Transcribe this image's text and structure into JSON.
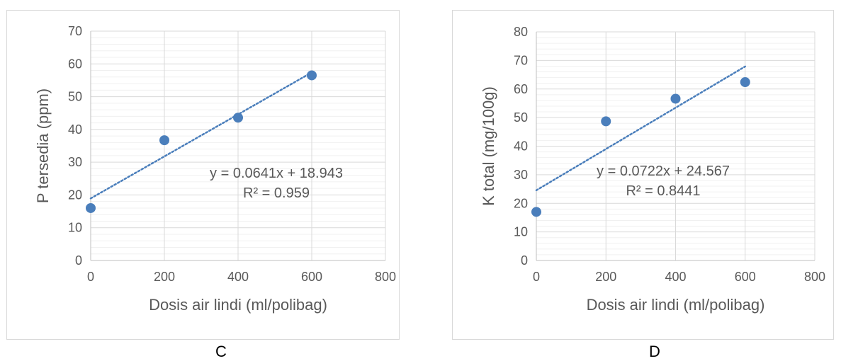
{
  "chart_data": [
    {
      "type": "scatter",
      "panel_label": "C",
      "xlabel": "Dosis  air lindi  (ml/polibag)",
      "ylabel": "P tersedia (ppm)",
      "xlim": [
        0,
        800
      ],
      "ylim": [
        0,
        70
      ],
      "x_ticks": [
        0,
        200,
        400,
        600,
        800
      ],
      "y_ticks": [
        0,
        10,
        20,
        30,
        40,
        50,
        60,
        70
      ],
      "minor_grid_step": 2,
      "points": [
        {
          "x": 0,
          "y": 16.0
        },
        {
          "x": 200,
          "y": 36.7
        },
        {
          "x": 400,
          "y": 43.6
        },
        {
          "x": 600,
          "y": 56.5
        }
      ],
      "trendline": {
        "type": "linear",
        "slope": 0.0641,
        "intercept": 18.943,
        "x_range": [
          0,
          600
        ]
      },
      "equation_text": "y = 0.0641x + 18.943",
      "r2_text": "R² = 0.959",
      "marker_color": "#4a7ebb",
      "trend_color": "#4a7ebb",
      "grid": true
    },
    {
      "type": "scatter",
      "panel_label": "D",
      "xlabel": "Dosis  air lindi (ml/polibag)",
      "ylabel": "K total (mg/100g)",
      "xlim": [
        0,
        800
      ],
      "ylim": [
        0,
        80
      ],
      "x_ticks": [
        0,
        200,
        400,
        600,
        800
      ],
      "y_ticks": [
        0,
        10,
        20,
        30,
        40,
        50,
        60,
        70,
        80
      ],
      "minor_grid_step": 2,
      "points": [
        {
          "x": 0,
          "y": 17.0
        },
        {
          "x": 200,
          "y": 48.7
        },
        {
          "x": 400,
          "y": 56.6
        },
        {
          "x": 600,
          "y": 62.4
        }
      ],
      "trendline": {
        "type": "linear",
        "slope": 0.0722,
        "intercept": 24.567,
        "x_range": [
          0,
          600
        ]
      },
      "equation_text": "y = 0.0722x + 24.567",
      "r2_text": "R² = 0.8441",
      "marker_color": "#4a7ebb",
      "trend_color": "#4a7ebb",
      "grid": true
    }
  ]
}
